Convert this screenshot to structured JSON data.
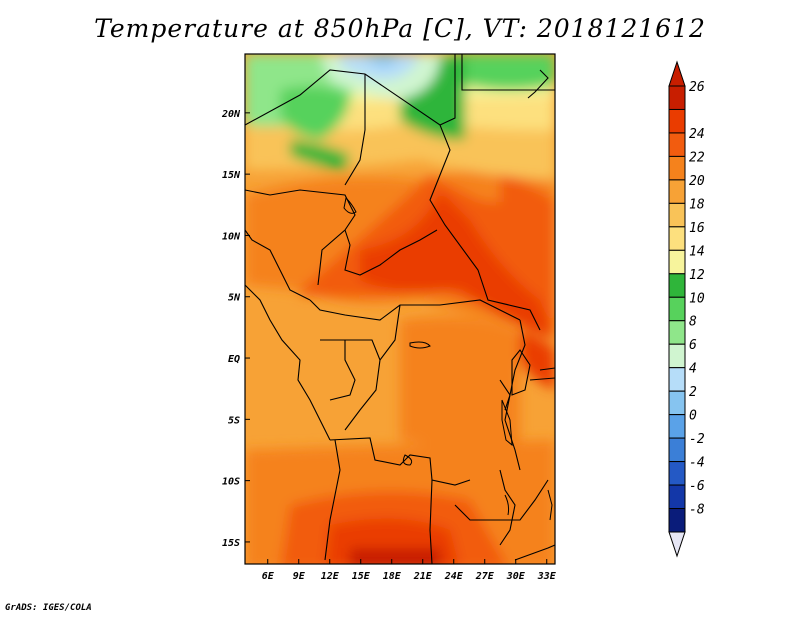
{
  "title": "Temperature at 850hPa [C], VT: 2018121612",
  "footer": "GrADS: IGES/COLA",
  "map": {
    "lon_range": [
      3.8,
      33.8
    ],
    "lat_range": [
      -16.8,
      24.8
    ],
    "lon_ticks": [
      {
        "value": 6,
        "label": "6E"
      },
      {
        "value": 9,
        "label": "9E"
      },
      {
        "value": 12,
        "label": "12E"
      },
      {
        "value": 15,
        "label": "15E"
      },
      {
        "value": 18,
        "label": "18E"
      },
      {
        "value": 21,
        "label": "21E"
      },
      {
        "value": 24,
        "label": "24E"
      },
      {
        "value": 27,
        "label": "27E"
      },
      {
        "value": 30,
        "label": "30E"
      },
      {
        "value": 33,
        "label": "33E"
      }
    ],
    "lat_ticks": [
      {
        "value": 20,
        "label": "20N"
      },
      {
        "value": 15,
        "label": "15N"
      },
      {
        "value": 10,
        "label": "10N"
      },
      {
        "value": 5,
        "label": "5N"
      },
      {
        "value": 0,
        "label": "EQ"
      },
      {
        "value": -5,
        "label": "5S"
      },
      {
        "value": -10,
        "label": "10S"
      },
      {
        "value": -15,
        "label": "15S"
      }
    ]
  },
  "colorbar": {
    "labels": [
      "26",
      "24",
      "22",
      "20",
      "18",
      "16",
      "14",
      "12",
      "10",
      "8",
      "6",
      "4",
      "2",
      "0",
      "-2",
      "-4",
      "-6",
      "-8"
    ],
    "colors": [
      "#c81e00",
      "#ea3c00",
      "#f25c0f",
      "#f5821c",
      "#f7a236",
      "#f9c358",
      "#fde07e",
      "#f7f49c",
      "#2fb53a",
      "#57d25c",
      "#8fe68a",
      "#d0f5d0",
      "#b6ddf9",
      "#86c4f0",
      "#5aa2e8",
      "#3b7fd7",
      "#2459c5",
      "#1337a8",
      "#0a1c7a"
    ],
    "over_color": "#c81e00",
    "under_color": "#e6e6f5"
  }
}
